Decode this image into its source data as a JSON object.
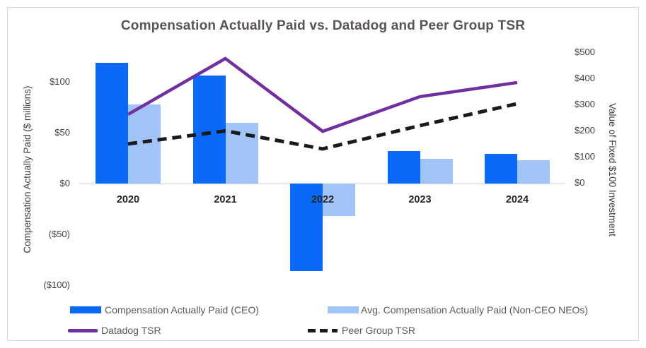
{
  "chart_data": {
    "type": "bar+line combo",
    "title": "Compensation Actually Paid vs. Datadog and Peer Group TSR",
    "categories": [
      "2020",
      "2021",
      "2022",
      "2023",
      "2024"
    ],
    "bar_series": [
      {
        "name": "Compensation Actually Paid (CEO)",
        "color": "#0B69FA",
        "axis": "left",
        "values": [
          119,
          106,
          -86,
          32,
          29
        ]
      },
      {
        "name": "Avg. Compensation Actually Paid (Non-CEO NEOs)",
        "color": "#A0C4F8",
        "axis": "left",
        "values": [
          78,
          60,
          -32,
          24,
          23
        ]
      }
    ],
    "line_series": [
      {
        "name": "Datadog TSR",
        "color": "#7030A0",
        "dash": "solid",
        "axis": "right",
        "values": [
          262,
          476,
          197,
          330,
          384
        ]
      },
      {
        "name": "Peer Group TSR",
        "color": "#1A1A1A",
        "dash": "dashed",
        "axis": "right",
        "values": [
          149,
          199,
          130,
          219,
          303
        ]
      }
    ],
    "left_axis": {
      "title": "Compensation Actually Paid ($ millions)",
      "tick_labels": [
        "$100",
        "$50",
        "$0",
        "($50)",
        "($100)"
      ],
      "tick_values": [
        100,
        50,
        0,
        -50,
        -100
      ],
      "range": [
        -100,
        130
      ]
    },
    "right_axis": {
      "title": "Value of Fixed $100 Investment",
      "tick_labels": [
        "$500",
        "$400",
        "$300",
        "$200",
        "$100",
        "$0"
      ],
      "tick_values": [
        500,
        400,
        300,
        200,
        100,
        0
      ],
      "range": [
        0,
        500
      ]
    },
    "legend_position": "bottom",
    "grid": "none",
    "frame_color": "#D9D9D9"
  }
}
